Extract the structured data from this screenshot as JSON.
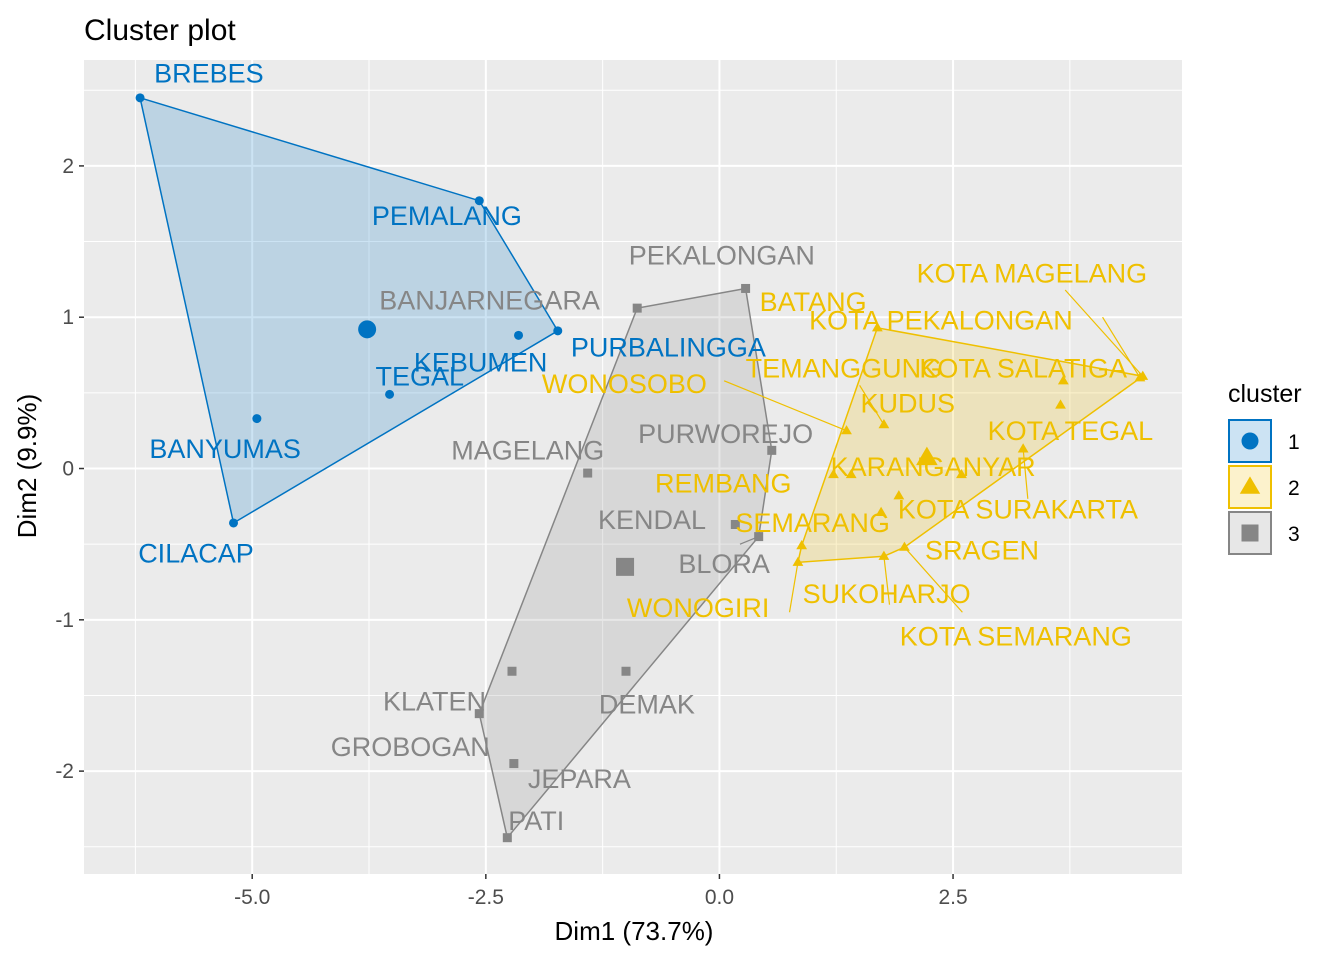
{
  "chart_data": {
    "type": "scatter",
    "title": "Cluster plot",
    "xlabel": "Dim1 (73.7%)",
    "ylabel": "Dim2 (9.9%)",
    "xlim": [
      -6.8,
      4.95
    ],
    "ylim": [
      -2.68,
      2.7
    ],
    "xticks": [
      -5.0,
      -2.5,
      0.0,
      2.5
    ],
    "xtick_labels": [
      "-5.0",
      "-2.5",
      "0.0",
      "2.5"
    ],
    "yticks": [
      -2,
      -1,
      0,
      1,
      2
    ],
    "ytick_labels": [
      "-2",
      "-1",
      "0",
      "1",
      "2"
    ],
    "grid": true,
    "legend_position": "right",
    "legend_title": "cluster",
    "clusters": [
      {
        "name": "1",
        "color": "#0073C2",
        "fill": "#0073C2",
        "shape": "circle",
        "centroid": [
          -3.77,
          0.92
        ],
        "hull": [
          [
            -6.2,
            2.45
          ],
          [
            -2.57,
            1.77
          ],
          [
            -1.73,
            0.91
          ],
          [
            -5.2,
            -0.36
          ]
        ],
        "points": [
          {
            "x": -6.2,
            "y": 2.45,
            "label": "BREBES",
            "lx": -6.05,
            "ly": 2.55,
            "anchor": "start"
          },
          {
            "x": -2.57,
            "y": 1.77,
            "label": "PEMALANG",
            "lx": -3.72,
            "ly": 1.61,
            "anchor": "start"
          },
          {
            "x": -1.73,
            "y": 0.91,
            "label": "PURBALINGGA",
            "lx": -1.59,
            "ly": 0.74,
            "anchor": "start"
          },
          {
            "x": -2.15,
            "y": 0.88,
            "label": "KEBUMEN",
            "lx": -3.27,
            "ly": 0.64,
            "anchor": "start"
          },
          {
            "x": -3.53,
            "y": 0.49,
            "label": "TEGAL",
            "lx": -3.68,
            "ly": 0.55,
            "anchor": "start"
          },
          {
            "x": -4.95,
            "y": 0.33,
            "label": "BANYUMAS",
            "lx": -6.1,
            "ly": 0.07,
            "anchor": "start"
          },
          {
            "x": -5.2,
            "y": -0.36,
            "label": "CILACAP",
            "lx": -6.22,
            "ly": -0.62,
            "anchor": "start"
          }
        ]
      },
      {
        "name": "2",
        "color": "#EFC000",
        "fill": "#EFC000",
        "shape": "triangle",
        "centroid": [
          2.22,
          0.07
        ],
        "hull": [
          [
            1.69,
            0.93
          ],
          [
            4.53,
            0.61
          ],
          [
            1.98,
            -0.52
          ],
          [
            1.76,
            -0.58
          ],
          [
            0.84,
            -0.62
          ],
          [
            0.88,
            -0.51
          ]
        ],
        "points": [
          {
            "x": 1.69,
            "y": 0.93,
            "label": "BATANG",
            "lx": 0.43,
            "ly": 1.04,
            "anchor": "start"
          },
          {
            "x": 4.53,
            "y": 0.61,
            "label": "KOTA MAGELANG",
            "lx": 2.11,
            "ly": 1.23,
            "anchor": "start"
          },
          {
            "x": 4.5,
            "y": 0.6,
            "label": "KOTA PEKALONGAN",
            "lx": 0.96,
            "ly": 0.92,
            "anchor": "start"
          },
          {
            "x": 3.68,
            "y": 0.58,
            "label": "KOTA SALATIGA",
            "lx": 2.14,
            "ly": 0.6,
            "anchor": "start"
          },
          {
            "x": 1.76,
            "y": 0.29,
            "label": "TEMANGGUNG",
            "lx": 0.28,
            "ly": 0.6,
            "anchor": "start"
          },
          {
            "x": 1.36,
            "y": 0.25,
            "label": "WONOSOBO",
            "lx": -1.9,
            "ly": 0.5,
            "anchor": "start"
          },
          {
            "x": 3.65,
            "y": 0.42,
            "label": "KUDUS",
            "lx": 1.51,
            "ly": 0.37,
            "anchor": "start"
          },
          {
            "x": 3.25,
            "y": 0.13,
            "label": "KOTA TEGAL",
            "lx": 2.87,
            "ly": 0.19,
            "anchor": "start"
          },
          {
            "x": 2.59,
            "y": -0.04,
            "label": "KARANGANYAR",
            "lx": 1.19,
            "ly": -0.05,
            "anchor": "start"
          },
          {
            "x": 1.22,
            "y": -0.04,
            "label": "REMBANG",
            "lx": -0.69,
            "ly": -0.16,
            "anchor": "start"
          },
          {
            "x": 1.41,
            "y": -0.04,
            "label": "",
            "lx": 0,
            "ly": 0,
            "anchor": "start"
          },
          {
            "x": 1.92,
            "y": -0.18,
            "label": "KOTA SURAKARTA",
            "lx": 1.91,
            "ly": -0.33,
            "anchor": "start"
          },
          {
            "x": 1.73,
            "y": -0.29,
            "label": "SEMARANG",
            "lx": 0.17,
            "ly": -0.42,
            "anchor": "start"
          },
          {
            "x": 1.98,
            "y": -0.52,
            "label": "SRAGEN",
            "lx": 2.2,
            "ly": -0.6,
            "anchor": "start"
          },
          {
            "x": 0.88,
            "y": -0.51,
            "label": "SUKOHARJO",
            "lx": 0.89,
            "ly": -0.89,
            "anchor": "start"
          },
          {
            "x": 1.76,
            "y": -0.58,
            "label": "KOTA SEMARANG",
            "lx": 1.93,
            "ly": -1.17,
            "anchor": "start"
          },
          {
            "x": 0.84,
            "y": -0.62,
            "label": "WONOGIRI",
            "lx": -0.99,
            "ly": -0.98,
            "anchor": "start"
          }
        ]
      },
      {
        "name": "3",
        "color": "#868686",
        "fill": "#868686",
        "shape": "square",
        "centroid": [
          -1.01,
          -0.65
        ],
        "hull": [
          [
            0.28,
            1.19
          ],
          [
            0.56,
            0.12
          ],
          [
            0.42,
            -0.45
          ],
          [
            -2.27,
            -2.44
          ],
          [
            -2.57,
            -1.62
          ],
          [
            -0.88,
            1.06
          ]
        ],
        "points": [
          {
            "x": 0.28,
            "y": 1.19,
            "label": "PEKALONGAN",
            "lx": -0.97,
            "ly": 1.35,
            "anchor": "start"
          },
          {
            "x": -0.88,
            "y": 1.06,
            "label": "BANJARNEGARA",
            "lx": -3.64,
            "ly": 1.05,
            "anchor": "start"
          },
          {
            "x": 0.56,
            "y": 0.12,
            "label": "PURWOREJO",
            "lx": -0.87,
            "ly": 0.17,
            "anchor": "start"
          },
          {
            "x": -1.41,
            "y": -0.03,
            "label": "MAGELANG",
            "lx": -2.87,
            "ly": 0.06,
            "anchor": "start"
          },
          {
            "x": 0.17,
            "y": -0.37,
            "label": "KENDAL",
            "lx": -1.3,
            "ly": -0.4,
            "anchor": "start"
          },
          {
            "x": 0.42,
            "y": -0.45,
            "label": "BLORA",
            "lx": -0.44,
            "ly": -0.69,
            "anchor": "start"
          },
          {
            "x": -2.22,
            "y": -1.34,
            "label": "KLATEN",
            "lx": -3.6,
            "ly": -1.6,
            "anchor": "start"
          },
          {
            "x": -1.0,
            "y": -1.34,
            "label": "DEMAK",
            "lx": -1.29,
            "ly": -1.62,
            "anchor": "start"
          },
          {
            "x": -2.57,
            "y": -1.62,
            "label": "GROBOGAN",
            "lx": -4.16,
            "ly": -1.9,
            "anchor": "start"
          },
          {
            "x": -2.2,
            "y": -1.95,
            "label": "JEPARA",
            "lx": -2.05,
            "ly": -2.11,
            "anchor": "start"
          },
          {
            "x": -2.27,
            "y": -2.44,
            "label": "PATI",
            "lx": -2.26,
            "ly": -2.39,
            "anchor": "start"
          }
        ]
      }
    ],
    "leader_lines": [
      {
        "from": [
          1.36,
          0.25
        ],
        "to": [
          0.05,
          0.58
        ],
        "cluster": "2"
      },
      {
        "from": [
          1.76,
          0.29
        ],
        "to": [
          1.5,
          0.55
        ],
        "cluster": "2"
      },
      {
        "from": [
          4.5,
          0.6
        ],
        "to": [
          4.1,
          1.0
        ],
        "cluster": "2"
      },
      {
        "from": [
          4.53,
          0.61
        ],
        "to": [
          3.7,
          1.18
        ],
        "cluster": "2"
      },
      {
        "from": [
          3.25,
          0.13
        ],
        "to": [
          3.3,
          -0.2
        ],
        "cluster": "2"
      },
      {
        "from": [
          1.98,
          -0.52
        ],
        "to": [
          2.6,
          -0.95
        ],
        "cluster": "2"
      },
      {
        "from": [
          1.76,
          -0.58
        ],
        "to": [
          1.82,
          -0.9
        ],
        "cluster": "2"
      },
      {
        "from": [
          0.84,
          -0.62
        ],
        "to": [
          0.75,
          -0.95
        ],
        "cluster": "2"
      },
      {
        "from": [
          0.42,
          -0.45
        ],
        "to": [
          0.22,
          -0.5
        ],
        "cluster": "3"
      }
    ]
  }
}
